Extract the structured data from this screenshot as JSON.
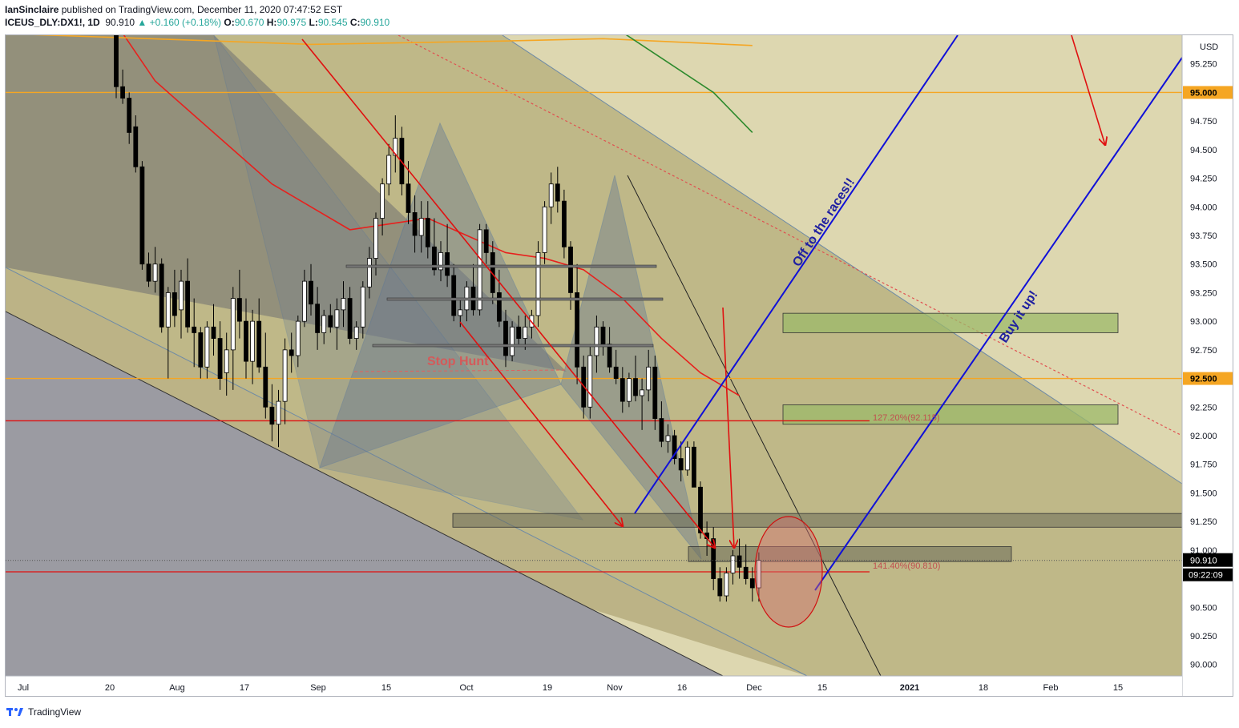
{
  "header": {
    "publisher": "IanSinclaire",
    "published_text": "published on TradingView.com, December 11, 2020 07:47:52 EST",
    "symbol": "ICEUS_DLY:DX1!, 1D",
    "last": "90.910",
    "change": "▲ +0.160 (+0.18%)",
    "o_label": "O:",
    "o_value": "90.670",
    "h_label": "H:",
    "h_value": "90.975",
    "l_label": "L:",
    "l_value": "90.545",
    "c_label": "C:",
    "c_value": "90.910"
  },
  "footer": {
    "brand": "TradingView",
    "logo_icon": "tradingview-logo-icon"
  },
  "colors": {
    "bull": "#ffffff",
    "bear": "#000000",
    "ma_red": "#e8201d",
    "ma_green": "#2d8a2d",
    "ma_orange": "#f5a623",
    "blue": "#1010d8",
    "arrow_red": "#e01010",
    "zone_green": "#9cba6a"
  },
  "chart_data": {
    "type": "candlestick",
    "timeframe": "1D",
    "ylim": [
      89.9,
      95.5
    ],
    "currency_label": "USD",
    "y_ticks": [
      "95.250",
      "95.000",
      "94.750",
      "94.500",
      "94.250",
      "94.000",
      "93.750",
      "93.500",
      "93.250",
      "93.000",
      "92.750",
      "92.500",
      "92.250",
      "92.000",
      "91.750",
      "91.500",
      "91.250",
      "91.000",
      "90.910",
      "90.500",
      "90.250",
      "90.000"
    ],
    "x_ticks": [
      "Jul",
      "20",
      "Aug",
      "17",
      "Sep",
      "15",
      "Oct",
      "19",
      "Nov",
      "16",
      "Dec",
      "15",
      "2021",
      "18",
      "Feb",
      "15"
    ],
    "candles": [
      [
        95.55,
        95.55,
        94.95,
        95.05
      ],
      [
        95.05,
        95.2,
        94.9,
        94.95
      ],
      [
        94.95,
        95.0,
        94.55,
        94.65
      ],
      [
        94.7,
        94.8,
        94.3,
        94.35
      ],
      [
        94.35,
        94.4,
        93.45,
        93.5
      ],
      [
        93.5,
        93.6,
        93.3,
        93.35
      ],
      [
        93.35,
        93.65,
        93.25,
        93.5
      ],
      [
        93.5,
        93.55,
        92.9,
        92.95
      ],
      [
        92.95,
        93.3,
        92.5,
        93.25
      ],
      [
        93.25,
        93.45,
        92.95,
        93.05
      ],
      [
        93.1,
        93.45,
        92.85,
        93.35
      ],
      [
        93.35,
        93.55,
        92.9,
        92.95
      ],
      [
        92.95,
        93.2,
        92.6,
        92.9
      ],
      [
        92.9,
        92.95,
        92.5,
        92.6
      ],
      [
        92.6,
        93.0,
        92.5,
        92.95
      ],
      [
        92.95,
        93.15,
        92.7,
        92.85
      ],
      [
        92.85,
        93.0,
        92.4,
        92.5
      ],
      [
        92.55,
        92.9,
        92.35,
        92.75
      ],
      [
        92.75,
        93.3,
        92.4,
        93.2
      ],
      [
        93.2,
        93.45,
        92.85,
        93.0
      ],
      [
        93.0,
        93.2,
        92.5,
        92.65
      ],
      [
        92.65,
        93.1,
        92.45,
        93.0
      ],
      [
        93.0,
        93.2,
        92.55,
        92.6
      ],
      [
        92.6,
        92.9,
        92.15,
        92.25
      ],
      [
        92.25,
        92.45,
        91.95,
        92.1
      ],
      [
        92.1,
        92.4,
        91.9,
        92.3
      ],
      [
        92.3,
        92.85,
        92.1,
        92.75
      ],
      [
        92.75,
        92.9,
        92.55,
        92.7
      ],
      [
        92.7,
        93.05,
        92.6,
        93.0
      ],
      [
        93.0,
        93.45,
        92.95,
        93.35
      ],
      [
        93.35,
        93.5,
        93.05,
        93.15
      ],
      [
        93.15,
        93.3,
        92.75,
        92.9
      ],
      [
        92.9,
        93.1,
        92.8,
        93.05
      ],
      [
        93.05,
        93.15,
        92.9,
        92.95
      ],
      [
        92.95,
        93.2,
        92.75,
        93.1
      ],
      [
        93.1,
        93.35,
        92.95,
        93.2
      ],
      [
        93.2,
        93.3,
        92.8,
        92.85
      ],
      [
        92.85,
        93.0,
        92.75,
        92.95
      ],
      [
        92.95,
        93.35,
        92.85,
        93.3
      ],
      [
        93.3,
        93.65,
        93.2,
        93.55
      ],
      [
        93.55,
        93.95,
        93.4,
        93.9
      ],
      [
        93.9,
        94.25,
        93.75,
        94.2
      ],
      [
        94.2,
        94.55,
        94.1,
        94.45
      ],
      [
        94.45,
        94.8,
        94.3,
        94.6
      ],
      [
        94.6,
        94.7,
        94.1,
        94.2
      ],
      [
        94.2,
        94.4,
        93.85,
        93.95
      ],
      [
        93.95,
        94.1,
        93.6,
        93.75
      ],
      [
        93.75,
        94.05,
        93.6,
        93.9
      ],
      [
        93.9,
        94.05,
        93.55,
        93.65
      ],
      [
        93.65,
        93.9,
        93.4,
        93.45
      ],
      [
        93.45,
        93.7,
        93.35,
        93.6
      ],
      [
        93.6,
        93.85,
        93.3,
        93.4
      ],
      [
        93.4,
        93.5,
        93.0,
        93.05
      ],
      [
        93.05,
        93.2,
        92.95,
        93.1
      ],
      [
        93.1,
        93.35,
        93.0,
        93.3
      ],
      [
        93.3,
        93.5,
        93.05,
        93.1
      ],
      [
        93.1,
        93.85,
        93.05,
        93.8
      ],
      [
        93.8,
        93.85,
        93.5,
        93.6
      ],
      [
        93.6,
        93.7,
        93.15,
        93.25
      ],
      [
        93.25,
        93.45,
        92.95,
        93.0
      ],
      [
        93.0,
        93.1,
        92.6,
        92.7
      ],
      [
        92.7,
        93.0,
        92.65,
        92.95
      ],
      [
        92.95,
        93.05,
        92.8,
        92.85
      ],
      [
        92.85,
        93.05,
        92.75,
        92.95
      ],
      [
        92.95,
        93.1,
        92.85,
        93.05
      ],
      [
        93.05,
        93.7,
        92.95,
        93.6
      ],
      [
        93.6,
        94.05,
        93.5,
        94.0
      ],
      [
        94.0,
        94.3,
        93.85,
        94.2
      ],
      [
        94.2,
        94.35,
        93.95,
        94.05
      ],
      [
        94.05,
        94.15,
        93.55,
        93.65
      ],
      [
        93.65,
        93.7,
        93.1,
        93.25
      ],
      [
        93.25,
        93.5,
        92.45,
        92.6
      ],
      [
        92.6,
        92.7,
        92.15,
        92.25
      ],
      [
        92.25,
        92.8,
        92.15,
        92.7
      ],
      [
        92.7,
        93.05,
        92.55,
        92.95
      ],
      [
        92.95,
        93.0,
        92.7,
        92.8
      ],
      [
        92.8,
        92.95,
        92.55,
        92.6
      ],
      [
        92.6,
        92.75,
        92.45,
        92.5
      ],
      [
        92.5,
        92.6,
        92.2,
        92.3
      ],
      [
        92.3,
        92.55,
        92.25,
        92.5
      ],
      [
        92.5,
        92.7,
        92.3,
        92.35
      ],
      [
        92.35,
        92.5,
        92.05,
        92.4
      ],
      [
        92.4,
        92.75,
        92.3,
        92.6
      ],
      [
        92.6,
        92.7,
        92.05,
        92.15
      ],
      [
        92.15,
        92.3,
        91.9,
        91.95
      ],
      [
        91.95,
        92.1,
        91.85,
        92.0
      ],
      [
        92.0,
        92.05,
        91.75,
        91.8
      ],
      [
        91.8,
        91.95,
        91.6,
        91.7
      ],
      [
        91.7,
        91.95,
        91.65,
        91.9
      ],
      [
        91.9,
        91.95,
        91.55,
        91.55
      ],
      [
        91.55,
        91.6,
        91.1,
        91.15
      ],
      [
        91.15,
        91.25,
        90.95,
        91.1
      ],
      [
        91.1,
        91.2,
        90.65,
        90.75
      ],
      [
        90.75,
        90.85,
        90.55,
        90.6
      ],
      [
        90.6,
        90.85,
        90.55,
        90.8
      ],
      [
        90.8,
        91.0,
        90.7,
        90.95
      ],
      [
        90.95,
        91.1,
        90.75,
        90.85
      ],
      [
        90.85,
        91.05,
        90.7,
        90.75
      ],
      [
        90.75,
        90.85,
        90.55,
        90.67
      ],
      [
        90.67,
        90.98,
        90.55,
        90.91
      ]
    ],
    "moving_averages": [
      {
        "color": "#e8201d",
        "values": [
          [
            0,
            95.6
          ],
          [
            6,
            95.1
          ],
          [
            12,
            94.8
          ],
          [
            18,
            94.5
          ],
          [
            24,
            94.2
          ],
          [
            30,
            94.0
          ],
          [
            36,
            93.8
          ],
          [
            42,
            93.85
          ],
          [
            48,
            93.9
          ],
          [
            54,
            93.75
          ],
          [
            60,
            93.6
          ],
          [
            66,
            93.55
          ],
          [
            72,
            93.45
          ],
          [
            78,
            93.2
          ],
          [
            84,
            92.85
          ],
          [
            90,
            92.55
          ],
          [
            96,
            92.35
          ]
        ]
      },
      {
        "color": "#f5a623",
        "values": [
          [
            -20,
            95.52
          ],
          [
            0,
            95.48
          ],
          [
            30,
            95.42
          ],
          [
            60,
            95.45
          ],
          [
            75,
            95.47
          ],
          [
            98,
            95.41
          ]
        ]
      },
      {
        "color": "#2d8a2d",
        "values": [
          [
            76,
            95.6
          ],
          [
            84,
            95.3
          ],
          [
            92,
            95.0
          ],
          [
            98,
            94.65
          ]
        ]
      }
    ],
    "horizontal_levels": [
      {
        "price": 95.0,
        "color": "#f5a623",
        "label": "95.000"
      },
      {
        "price": 92.5,
        "color": "#f5a623",
        "label": "92.500"
      },
      {
        "price": 92.13,
        "color": "#e01010"
      },
      {
        "price": 90.81,
        "color": "#e01010"
      }
    ],
    "current_price": "90.910",
    "countdown": "09:22:09",
    "annotations": {
      "stop_hunt": "Stop Hunt",
      "off_to_races": "Off to the races!!",
      "buy_it_up": "Buy it up!",
      "fib_127": "127.20%(92.115)",
      "fib_141": "141.40%(90.810)"
    },
    "zones": [
      {
        "from": 93.07,
        "to": 92.9,
        "color": "#9cba6a"
      },
      {
        "from": 92.27,
        "to": 92.1,
        "color": "#9cba6a"
      },
      {
        "from": 91.32,
        "to": 91.2,
        "color": "#6b6b5a"
      },
      {
        "from": 91.03,
        "to": 90.9,
        "color": "#6b6b5a"
      }
    ]
  }
}
